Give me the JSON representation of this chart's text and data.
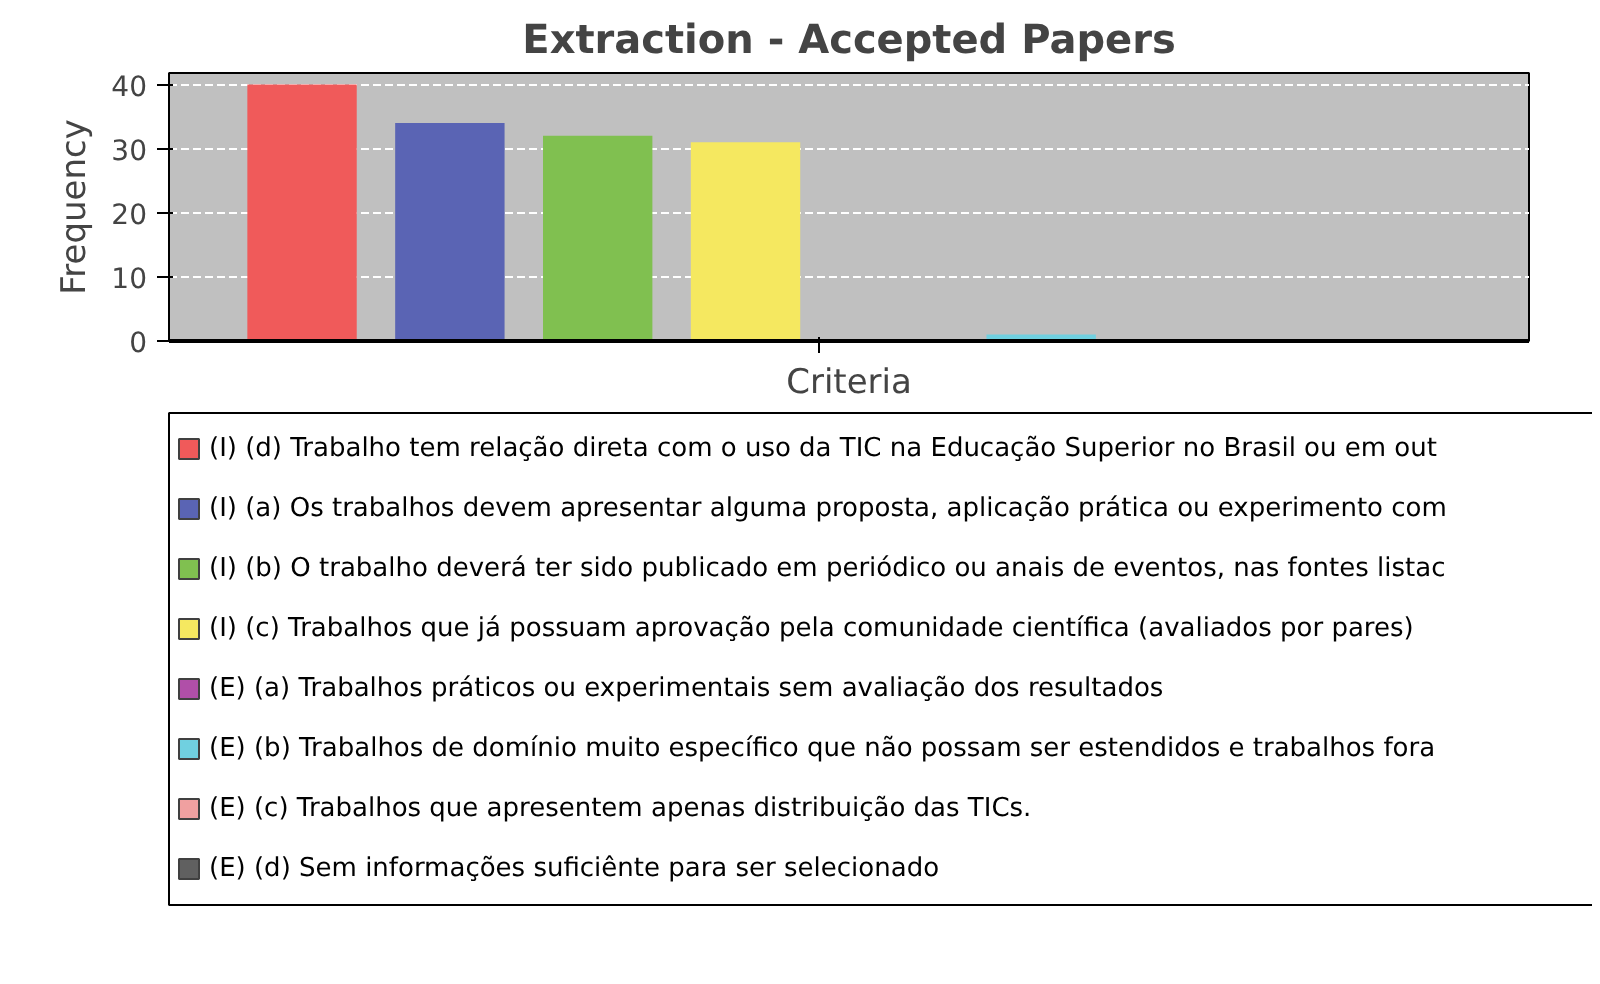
{
  "chart_data": {
    "type": "bar",
    "title": "Extraction - Accepted Papers",
    "xlabel": "Criteria",
    "ylabel": "Frequency",
    "categories": [
      null
    ],
    "series": [
      {
        "name": "(I) (d) Trabalho tem relação direta com o uso da TIC na Educação Superior no Brasil ou em out",
        "color": "#f05a5a",
        "values": [
          40
        ]
      },
      {
        "name": "(I) (a) Os trabalhos devem apresentar alguma proposta, aplicação prática ou experimento com",
        "color": "#5a64b4",
        "values": [
          34
        ]
      },
      {
        "name": "(I) (b) O trabalho deverá ter sido publicado em periódico ou anais de eventos, nas fontes listac",
        "color": "#80c050",
        "values": [
          32
        ]
      },
      {
        "name": "(I) (c) Trabalhos que já possuam aprovação pela comunidade científica (avaliados por pares)",
        "color": "#f5e860",
        "values": [
          31
        ]
      },
      {
        "name": "(E) (a) Trabalhos práticos ou experimentais sem avaliação dos resultados",
        "color": "#b04fa8",
        "values": [
          0
        ]
      },
      {
        "name": "(E) (b) Trabalhos de domínio muito específico que não possam ser estendidos e trabalhos fora",
        "color": "#70d0e0",
        "values": [
          1
        ]
      },
      {
        "name": "(E) (c) Trabalhos que apresentem apenas distribuição das TICs.",
        "color": "#f0a0a0",
        "values": [
          0
        ]
      },
      {
        "name": "(E) (d) Sem informações suficiênte para ser selecionado",
        "color": "#606060",
        "values": [
          0
        ]
      }
    ],
    "ylim": [
      0,
      41.8
    ],
    "yticks": [
      0,
      10,
      20,
      30,
      40
    ],
    "grid": "y",
    "legend": "bottom",
    "tick_labels": "y"
  }
}
